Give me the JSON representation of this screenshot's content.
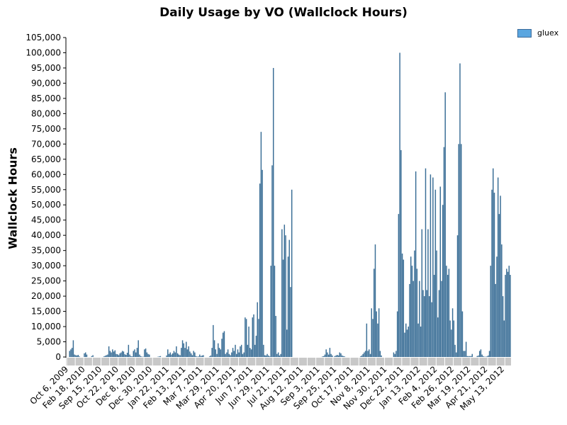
{
  "chart_data": {
    "type": "bar",
    "title": "Daily Usage by VO (Wallclock Hours)",
    "ylabel": "Wallclock Hours",
    "xlabel": "",
    "ylim": [
      0,
      105000
    ],
    "yticks": [
      "0",
      "5,000",
      "10,000",
      "15,000",
      "20,000",
      "25,000",
      "30,000",
      "35,000",
      "40,000",
      "45,000",
      "50,000",
      "55,000",
      "60,000",
      "65,000",
      "70,000",
      "75,000",
      "80,000",
      "85,000",
      "90,000",
      "95,000",
      "100,000",
      "105,000"
    ],
    "xtick_labels": [
      "Oct 6, 2009",
      "Feb 18, 2010",
      "Sep 15, 2010",
      "Oct 22, 2010",
      "Dec 8, 2010",
      "Dec 30, 2010",
      "Jan 22, 2011",
      "Feb 13, 2011",
      "Mar 7, 2011",
      "Mar 29, 2011",
      "Apr 20, 2011",
      "Jun 7, 2011",
      "Jun 29, 2011",
      "Jul 21, 2011",
      "Aug 12, 2011",
      "Sep 3, 2011",
      "Sep 25, 2011",
      "Oct 17, 2011",
      "Nov 8, 2011",
      "Nov 30, 2011",
      "Dec 22, 2011",
      "Jan 13, 2012",
      "Feb 4, 2012",
      "Feb 26, 2012",
      "Mar 19, 2012",
      "Apr 21, 2012",
      "May 13, 2012"
    ],
    "legend_position": "top-right",
    "grid": false,
    "colors": {
      "bar": "#3a6e96",
      "legend": "#5aa6e0",
      "axis_band": "#c8c8c8"
    },
    "series": [
      {
        "name": "gluex",
        "values": [
          0,
          0,
          2000,
          2500,
          3000,
          5500,
          800,
          600,
          500,
          700,
          200,
          0,
          0,
          0,
          1200,
          1500,
          800,
          0,
          0,
          0,
          300,
          600,
          0,
          0,
          0,
          0,
          0,
          0,
          0,
          0,
          200,
          400,
          600,
          800,
          3500,
          2000,
          1500,
          2500,
          1800,
          2200,
          1000,
          900,
          600,
          1200,
          1500,
          2000,
          1800,
          900,
          700,
          1400,
          4000,
          800,
          300,
          200,
          2000,
          2500,
          1500,
          3000,
          5500,
          800,
          300,
          100,
          100,
          2500,
          2800,
          1500,
          1000,
          800,
          0,
          0,
          0,
          0,
          0,
          0,
          100,
          200,
          300,
          0,
          0,
          0,
          0,
          500,
          2500,
          1000,
          1500,
          800,
          1200,
          2000,
          1500,
          3500,
          1200,
          800,
          600,
          3000,
          5500,
          4500,
          3000,
          5000,
          2500,
          3500,
          1800,
          1200,
          600,
          2000,
          1500,
          300,
          100,
          200,
          800,
          300,
          500,
          600,
          0,
          0,
          0,
          0,
          200,
          500,
          3000,
          10500,
          5500,
          2500,
          1000,
          4500,
          3000,
          2500,
          6000,
          8000,
          8500,
          1000,
          1500,
          2500,
          1000,
          600,
          1500,
          3000,
          2000,
          4000,
          1000,
          2500,
          1500,
          3500,
          4000,
          1000,
          1500,
          13000,
          12500,
          4000,
          10000,
          3000,
          2500,
          13000,
          14000,
          4000,
          7000,
          18000,
          12500,
          57000,
          74000,
          61500,
          4000,
          600,
          500,
          1000,
          500,
          200,
          30000,
          63000,
          95000,
          30000,
          13500,
          1000,
          1500,
          500,
          1000,
          42000,
          32000,
          43500,
          40000,
          9000,
          33000,
          38500,
          23000,
          55000,
          0,
          0,
          0,
          0,
          0,
          0,
          0,
          0,
          0,
          0,
          0,
          0,
          0,
          0,
          0,
          0,
          0,
          0,
          0,
          0,
          0,
          0,
          0,
          0,
          200,
          300,
          800,
          2500,
          1500,
          800,
          3000,
          1000,
          500,
          0,
          300,
          500,
          700,
          500,
          1500,
          1200,
          500,
          300,
          200,
          0,
          0,
          0,
          0,
          0,
          0,
          0,
          0,
          0,
          0,
          0,
          0,
          200,
          500,
          1000,
          1500,
          2000,
          11000,
          2000,
          2500,
          1000,
          16000,
          12500,
          29000,
          37000,
          15000,
          11000,
          16000,
          2000,
          500,
          0,
          0,
          0,
          0,
          0,
          0,
          0,
          0,
          0,
          1500,
          1000,
          2000,
          15000,
          47000,
          100000,
          68000,
          34000,
          32000,
          8000,
          11000,
          9000,
          10000,
          24000,
          33000,
          30000,
          25000,
          35000,
          61000,
          29000,
          11000,
          25000,
          10000,
          42000,
          22000,
          20000,
          62000,
          22000,
          42000,
          20000,
          60000,
          18000,
          59000,
          27000,
          55000,
          35000,
          13000,
          22000,
          56000,
          25000,
          50000,
          69000,
          87000,
          30000,
          27000,
          29000,
          12000,
          9000,
          16000,
          12000,
          4000,
          1500,
          40000,
          70000,
          96500,
          70000,
          15000,
          2000,
          2000,
          5000,
          300,
          300,
          300,
          300,
          1000,
          0,
          0,
          0,
          300,
          500,
          2000,
          2500,
          800,
          300,
          100,
          100,
          200,
          500,
          2000,
          30000,
          55000,
          62000,
          54000,
          24000,
          33000,
          59000,
          47000,
          53000,
          37000,
          20000,
          12000,
          27000,
          29000,
          28000,
          30000,
          27000
        ]
      }
    ]
  }
}
